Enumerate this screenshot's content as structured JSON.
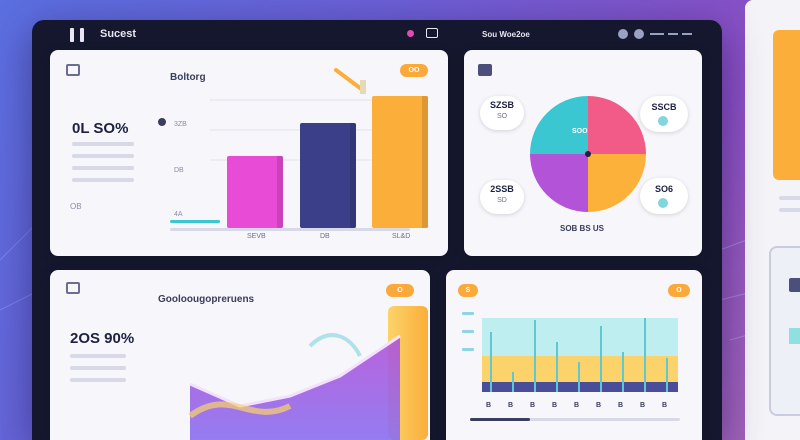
{
  "window": {
    "title": "Sucest",
    "crumb": "Sou Woe2oe"
  },
  "card_bar": {
    "title": "Boltorg",
    "stat_value": "0L SO%",
    "side_label": "OB",
    "y_ticks": [
      "3ZB",
      "DB",
      "4A"
    ],
    "x_labels": [
      "SEVB",
      "DB",
      "SL&D"
    ],
    "chart_data": {
      "type": "bar",
      "categories": [
        "SEVB",
        "DB",
        "SL&D"
      ],
      "values": [
        48,
        70,
        88
      ],
      "colors": [
        "#e84bd6",
        "#3b3f8a",
        "#fbae3a"
      ]
    }
  },
  "card_pie": {
    "left_top_label": "SZSB",
    "left_top_sub": "SO",
    "right_top_label": "SSCB",
    "left_bottom_label": "2SSB",
    "left_bottom_sub": "SD",
    "right_bottom_label": "SO6",
    "footer": "SOB BS US",
    "chart_data": {
      "type": "pie",
      "slices": [
        {
          "value": 25,
          "color": "#f25a87"
        },
        {
          "value": 25,
          "color": "#fbb13a"
        },
        {
          "value": 25,
          "color": "#b253d8"
        },
        {
          "value": 25,
          "color": "#3ac7d2"
        }
      ]
    }
  },
  "card_area": {
    "title": "Gooloougopreruens",
    "stat_value": "2OS 90%",
    "pill": "O"
  },
  "card_hist": {
    "pill": "S",
    "pill_right": "O",
    "x_ticks": [
      "B",
      "B",
      "B",
      "B",
      "B",
      "B",
      "B",
      "B",
      "B"
    ]
  },
  "card_bar_pill": "OO",
  "card_pie_stat": "SOO"
}
